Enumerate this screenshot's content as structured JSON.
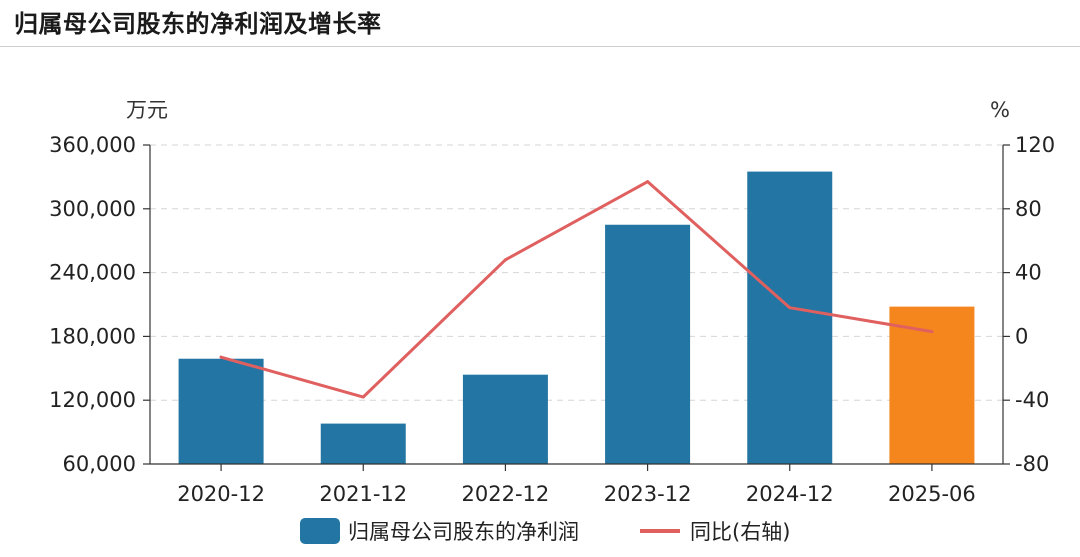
{
  "title": "归属母公司股东的净利润及增长率",
  "chart_data": {
    "type": "bar",
    "categories": [
      "2020-12",
      "2021-12",
      "2022-12",
      "2023-12",
      "2024-12",
      "2025-06"
    ],
    "series": [
      {
        "name": "归属母公司股东的净利润",
        "type": "bar",
        "axis": "left",
        "values": [
          159000,
          98000,
          144000,
          285000,
          335000,
          208000
        ],
        "color": "#2376a3",
        "highlight": {
          "index": 5,
          "color": "#f4861d"
        }
      },
      {
        "name": "同比(右轴)",
        "type": "line",
        "axis": "right",
        "values": [
          -13,
          -38,
          48,
          97,
          18,
          3
        ],
        "color": "#e06060"
      }
    ],
    "left_axis": {
      "unit": "万元",
      "ylim": [
        60000,
        360000
      ],
      "ticks": [
        60000,
        120000,
        180000,
        240000,
        300000,
        360000
      ],
      "tick_labels": [
        "60,000",
        "120,000",
        "180,000",
        "240,000",
        "300,000",
        "360,000"
      ]
    },
    "right_axis": {
      "unit": "%",
      "ylim": [
        -80,
        120
      ],
      "ticks": [
        -80,
        -40,
        0,
        40,
        80,
        120
      ],
      "tick_labels": [
        "-80",
        "-40",
        "0",
        "40",
        "80",
        "120"
      ]
    },
    "grid": "dashed-horizontal",
    "legend_position": "bottom-center"
  }
}
